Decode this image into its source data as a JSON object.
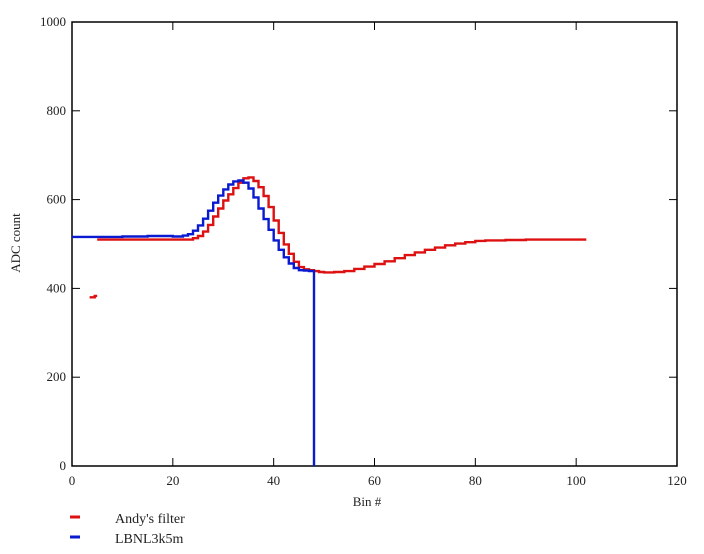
{
  "chart_data": {
    "type": "line",
    "title": "",
    "xlabel": "Bin #",
    "ylabel": "ADC count",
    "xlim": [
      0,
      120
    ],
    "ylim": [
      0,
      1000
    ],
    "xticks": [
      0,
      20,
      40,
      60,
      80,
      100,
      120
    ],
    "yticks": [
      0,
      200,
      400,
      600,
      800,
      1000
    ],
    "grid": false,
    "legend_position": "bottom-left",
    "series": [
      {
        "name": "Andy's filter",
        "color": "#dd1111",
        "step": true,
        "segments": [
          [
            [
              3.5,
              380
            ],
            [
              4.5,
              383
            ],
            [
              5,
              383
            ]
          ],
          [
            [
              5,
              510
            ],
            [
              6,
              510
            ],
            [
              23,
              510
            ],
            [
              24,
              513
            ],
            [
              25,
              518
            ],
            [
              26,
              528
            ],
            [
              27,
              543
            ],
            [
              28,
              562
            ],
            [
              29,
              580
            ],
            [
              30,
              598
            ],
            [
              31,
              612
            ],
            [
              32,
              626
            ],
            [
              33,
              638
            ],
            [
              34,
              648
            ],
            [
              35,
              650
            ],
            [
              36,
              642
            ],
            [
              37,
              628
            ],
            [
              38,
              608
            ],
            [
              39,
              583
            ],
            [
              40,
              553
            ],
            [
              41,
              525
            ],
            [
              42,
              499
            ],
            [
              43,
              478
            ],
            [
              44,
              460
            ],
            [
              45,
              448
            ],
            [
              46,
              443
            ],
            [
              47,
              441
            ],
            [
              48,
              439
            ],
            [
              49,
              437
            ],
            [
              50,
              436
            ],
            [
              52,
              437
            ],
            [
              54,
              439
            ],
            [
              56,
              444
            ],
            [
              58,
              449
            ],
            [
              60,
              455
            ],
            [
              62,
              461
            ],
            [
              64,
              468
            ],
            [
              66,
              475
            ],
            [
              68,
              481
            ],
            [
              70,
              487
            ],
            [
              72,
              492
            ],
            [
              74,
              497
            ],
            [
              76,
              501
            ],
            [
              78,
              504
            ],
            [
              80,
              507
            ],
            [
              82,
              508
            ],
            [
              86,
              509
            ],
            [
              90,
              510
            ],
            [
              96,
              510
            ],
            [
              102,
              510
            ]
          ]
        ]
      },
      {
        "name": "LBNL3k5m",
        "color": "#0a1ad0",
        "step": true,
        "segments": [
          [
            [
              0,
              516
            ],
            [
              10,
              517
            ],
            [
              15,
              518
            ],
            [
              20,
              517
            ],
            [
              22,
              519
            ],
            [
              23,
              522
            ],
            [
              24,
              530
            ],
            [
              25,
              542
            ],
            [
              26,
              557
            ],
            [
              27,
              575
            ],
            [
              28,
              593
            ],
            [
              29,
              609
            ],
            [
              30,
              623
            ],
            [
              31,
              634
            ],
            [
              32,
              641
            ],
            [
              33,
              643
            ],
            [
              34,
              638
            ],
            [
              35,
              625
            ],
            [
              36,
              605
            ],
            [
              37,
              580
            ],
            [
              38,
              556
            ],
            [
              39,
              532
            ],
            [
              40,
              508
            ],
            [
              41,
              487
            ],
            [
              42,
              470
            ],
            [
              43,
              456
            ],
            [
              44,
              446
            ],
            [
              45,
              441
            ],
            [
              46,
              440
            ],
            [
              47,
              439
            ],
            [
              48,
              438
            ],
            [
              48,
              0
            ]
          ]
        ]
      }
    ]
  }
}
